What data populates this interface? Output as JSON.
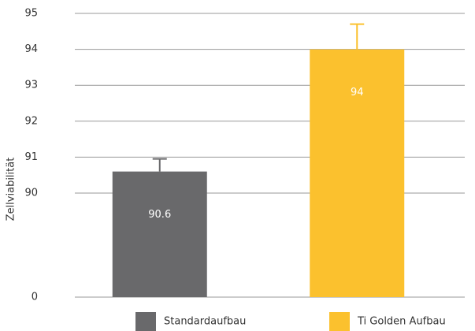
{
  "chart_data": {
    "type": "bar",
    "y_label": "Zellviabilität",
    "series": [
      {
        "name": "Standardaufbau",
        "color": "#69696b",
        "values": [
          90.6
        ],
        "errors": [
          0.35
        ]
      },
      {
        "name": "Ti Golden Aufbau",
        "color": "#fbc12e",
        "values": [
          94
        ],
        "errors": [
          0.7
        ]
      }
    ],
    "yticks": [
      0,
      90,
      91,
      92,
      93,
      94,
      95
    ],
    "ylim": [
      0,
      95
    ],
    "grid": true,
    "legend": "bottom"
  }
}
